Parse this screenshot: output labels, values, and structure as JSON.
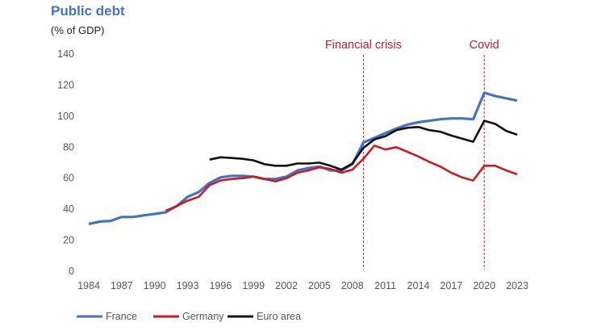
{
  "chart_data": {
    "type": "line",
    "title": "Public debt",
    "ylabel": "(% of GDP)",
    "xlabel": "",
    "ylim": [
      0,
      140
    ],
    "xlim": [
      1984,
      2023
    ],
    "yticks": [
      0,
      20,
      40,
      60,
      80,
      100,
      120,
      140
    ],
    "xticks": [
      1984,
      1987,
      1990,
      1993,
      1996,
      1999,
      2002,
      2005,
      2008,
      2011,
      2014,
      2017,
      2020,
      2023
    ],
    "grid": false,
    "legend_position": "bottom",
    "annotations": [
      {
        "label": "Financial crisis",
        "x": 2009,
        "color": "#c0202a"
      },
      {
        "label": "Covid",
        "x": 2020,
        "color": "#c0202a"
      }
    ],
    "series": [
      {
        "name": "France",
        "color": "#4472c4",
        "start": 1984,
        "values": [
          30.5,
          32,
          32.5,
          35,
          35,
          36,
          37,
          38,
          42,
          48,
          51,
          57,
          60.5,
          61.5,
          61.5,
          61,
          59.5,
          59.5,
          61,
          65,
          66.5,
          67.5,
          65,
          65,
          69,
          83,
          86,
          89,
          92,
          94.5,
          96,
          97,
          98,
          98.5,
          98.5,
          98,
          115,
          113,
          111.5,
          110
        ]
      },
      {
        "name": "Germany",
        "color": "#d0191f",
        "start": 1991,
        "values": [
          39,
          42,
          45.5,
          48,
          55.5,
          58.5,
          59.5,
          60,
          61,
          59.5,
          58,
          60,
          63.5,
          65,
          67,
          66,
          63.5,
          65.5,
          72.5,
          81,
          78.5,
          80,
          77,
          74,
          70.5,
          67.5,
          63.5,
          60.5,
          58.5,
          68,
          68,
          65,
          62.5
        ]
      },
      {
        "name": "Euro area",
        "color": "#111111",
        "start": 1995,
        "values": [
          72,
          73.5,
          73,
          72.5,
          71.5,
          69,
          68,
          68,
          69.5,
          69.5,
          70,
          68,
          65.5,
          69.5,
          79.5,
          85,
          87,
          91,
          92.5,
          93,
          91,
          90,
          87.5,
          85.5,
          83.5,
          97,
          95,
          90.5,
          88
        ]
      }
    ]
  }
}
